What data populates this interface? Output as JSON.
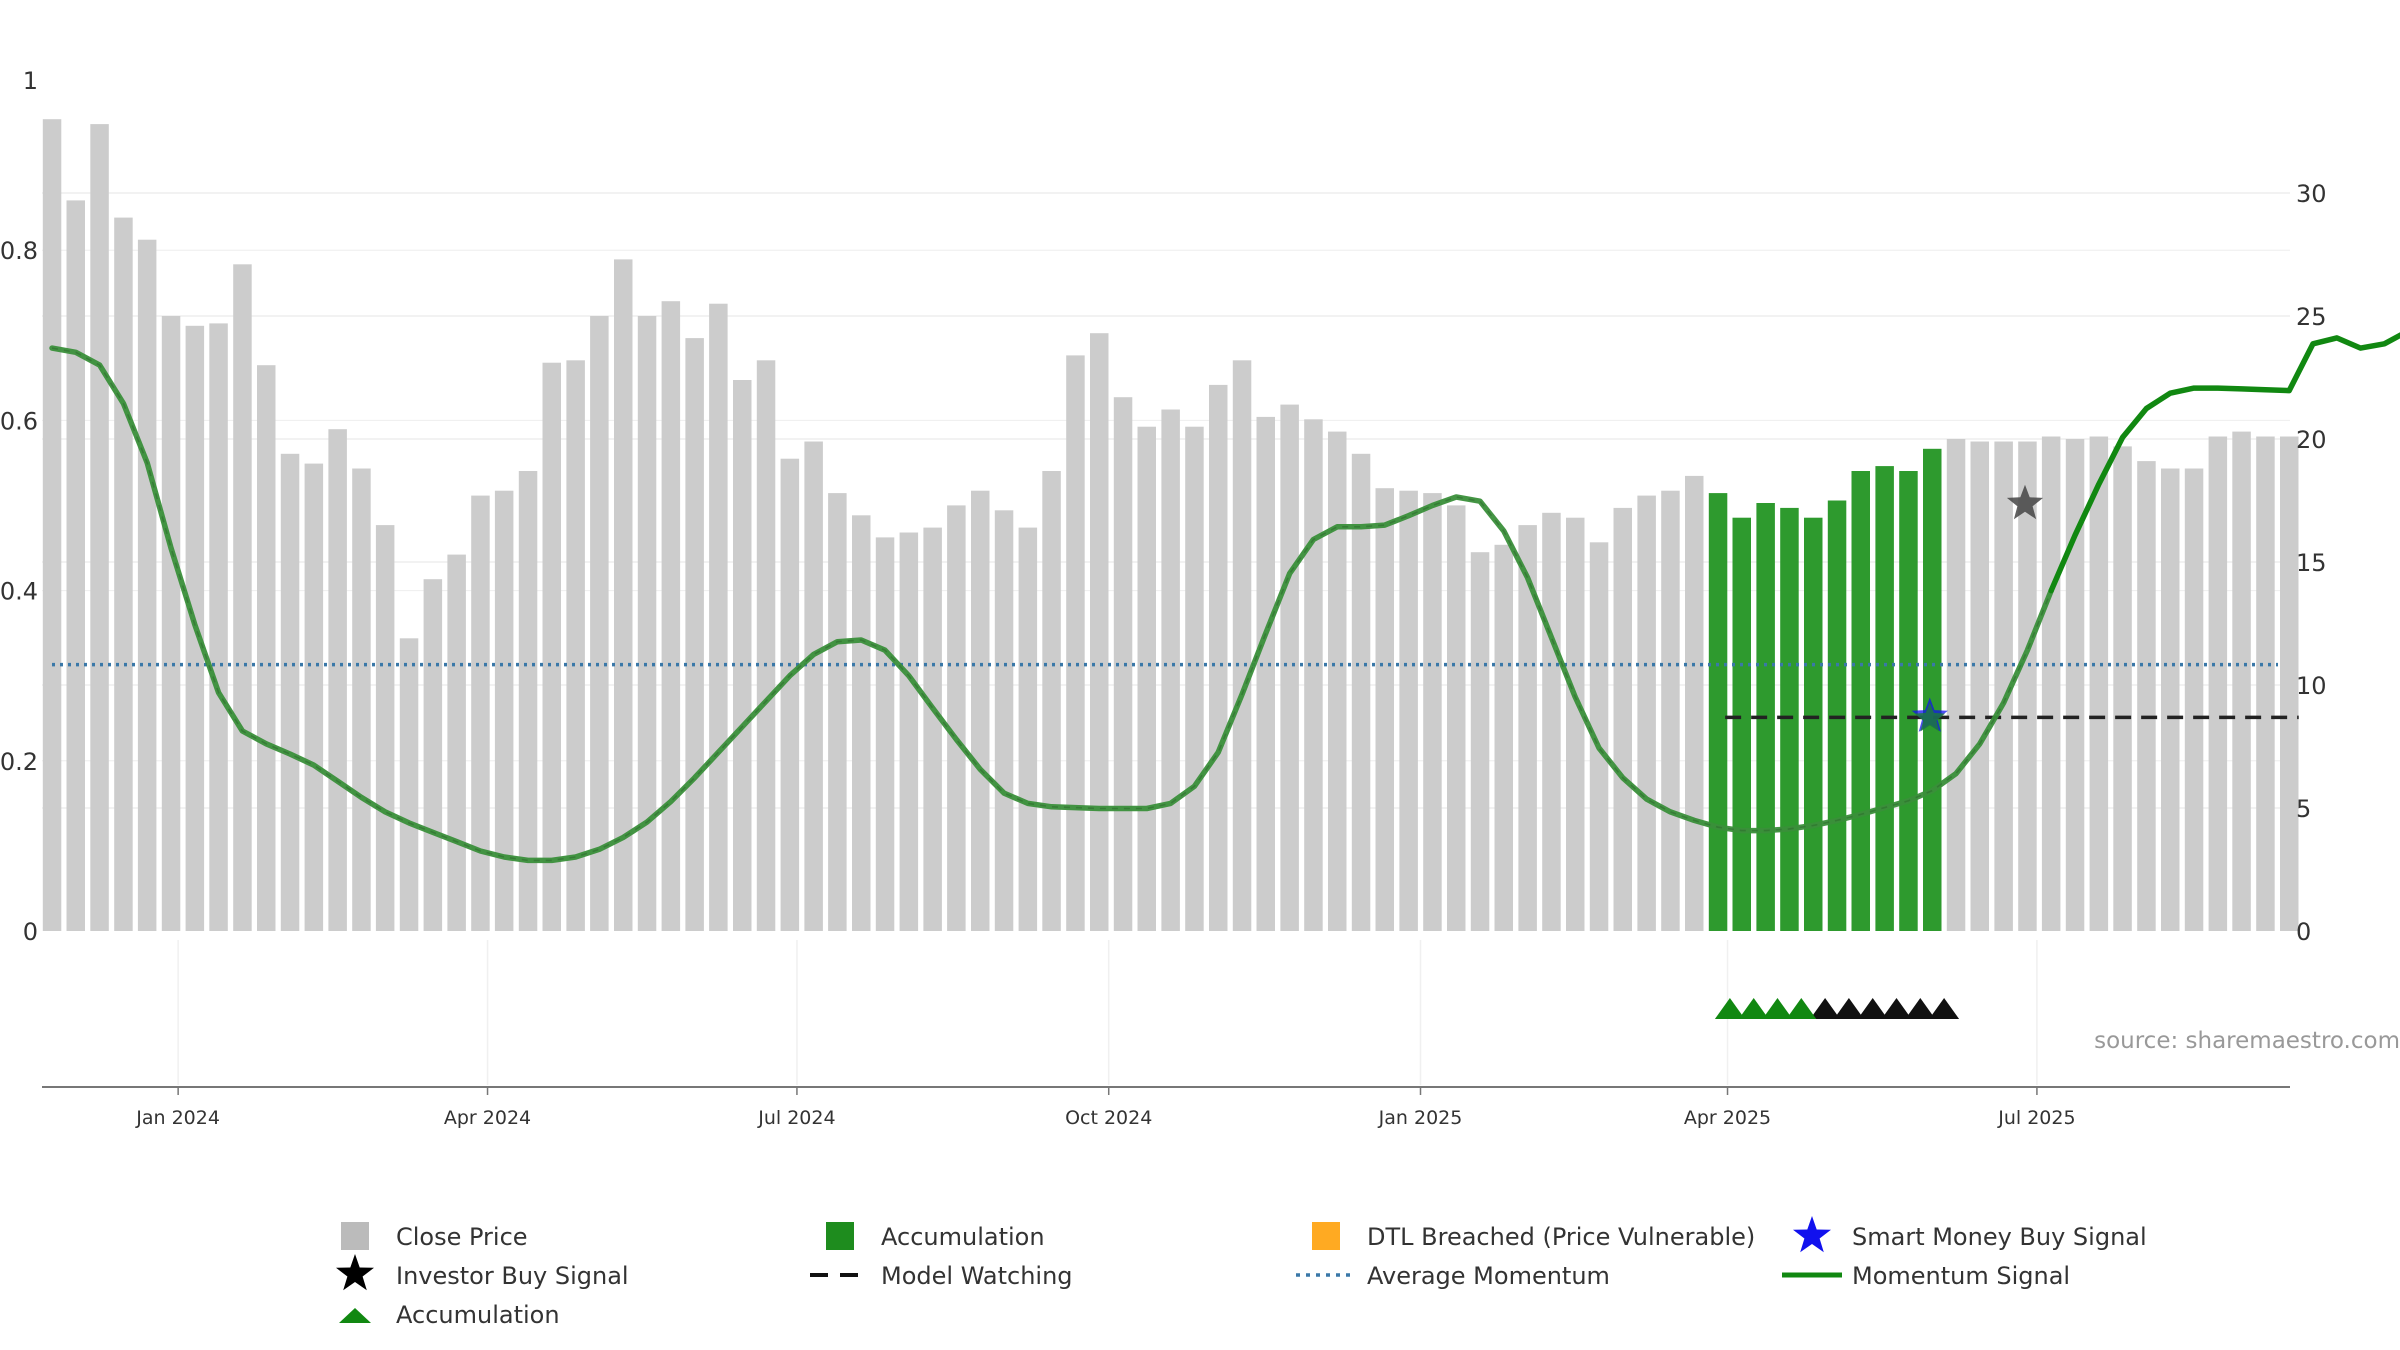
{
  "source_note": "source: sharemaestro.com",
  "legend": {
    "close_price": "Close Price",
    "accumulation_bar": "Accumulation",
    "dtl_breached": "DTL Breached (Price Vulnerable)",
    "smart_money": "Smart Money Buy Signal",
    "investor_buy": "Investor Buy Signal",
    "model_watching": "Model Watching",
    "average_momentum": "Average Momentum",
    "momentum_signal": "Momentum Signal",
    "accumulation_marker": "Accumulation"
  },
  "colors": {
    "bar_gray": "#cccccc",
    "bar_green": "#2e9a2e",
    "momentum_line": "#3a8f3a",
    "momentum_bright": "#118811",
    "average_line": "#3a78a8",
    "watching_line": "#222222",
    "dtl_orange": "#ffaa22",
    "smart_blue": "#1111ee",
    "investor_star": "#444444",
    "tri_green": "#118811",
    "tri_black": "#111111",
    "grid": "#eeeeee"
  },
  "chart_data": {
    "type": "bar",
    "x_labels": [
      "Jan 2024",
      "Apr 2024",
      "Jul 2024",
      "Oct 2024",
      "Jan 2025",
      "Apr 2025",
      "Jul 2025"
    ],
    "x_label_index": [
      5.3,
      18.3,
      31.3,
      44.4,
      57.5,
      70.4,
      83.4
    ],
    "left_axis": {
      "ticks": [
        "0",
        "0.2",
        "0.4",
        "0.6",
        "0.8",
        "1"
      ],
      "ylim": [
        0,
        1
      ]
    },
    "right_axis": {
      "ticks": [
        "0",
        "5",
        "10",
        "15",
        "20",
        "25",
        "30"
      ],
      "ylim": [
        0,
        34.6
      ]
    },
    "close_price": [
      33,
      29.7,
      32.8,
      29,
      28.1,
      25,
      24.6,
      24.7,
      27.1,
      23,
      19.4,
      19,
      20.4,
      18.8,
      16.5,
      11.9,
      14.3,
      15.3,
      17.7,
      17.9,
      18.7,
      23.1,
      23.2,
      25,
      27.3,
      25,
      25.6,
      24.1,
      25.5,
      22.4,
      23.2,
      19.2,
      19.9,
      17.8,
      16.9,
      16,
      16.2,
      16.4,
      17.3,
      17.9,
      17.1,
      16.4,
      18.7,
      23.4,
      24.3,
      21.7,
      20.5,
      21.2,
      20.5,
      22.2,
      23.2,
      20.9,
      21.4,
      20.8,
      20.3,
      19.4,
      18,
      17.9,
      17.8,
      17.3,
      15.4,
      15.7,
      16.5,
      17,
      16.8,
      15.8,
      17.2,
      17.7,
      17.9,
      18.5,
      17.8,
      16.8,
      17.4,
      17.2,
      16.8,
      17.5,
      18.7,
      18.9,
      18.7,
      19.6,
      20,
      19.9,
      19.9,
      19.9,
      20.1,
      20,
      20.1,
      19.7,
      19.1,
      18.8,
      18.8,
      20.1,
      20.3,
      20.1,
      20.1
    ],
    "accumulation_bar_index": [
      70,
      71,
      72,
      73,
      74,
      75,
      76,
      77,
      78,
      79
    ],
    "momentum_signal": [
      0.685,
      0.68,
      0.665,
      0.62,
      0.55,
      0.45,
      0.36,
      0.28,
      0.235,
      0.22,
      0.208,
      0.195,
      0.176,
      0.157,
      0.14,
      0.127,
      0.116,
      0.105,
      0.094,
      0.087,
      0.083,
      0.083,
      0.087,
      0.096,
      0.11,
      0.128,
      0.152,
      0.18,
      0.21,
      0.24,
      0.27,
      0.3,
      0.325,
      0.34,
      0.342,
      0.33,
      0.3,
      0.262,
      0.225,
      0.19,
      0.162,
      0.15,
      0.146,
      0.145,
      0.144,
      0.144,
      0.144,
      0.15,
      0.17,
      0.21,
      0.278,
      0.35,
      0.42,
      0.46,
      0.475,
      0.475,
      0.477,
      0.488,
      0.5,
      0.51,
      0.505,
      0.47,
      0.415,
      0.345,
      0.275,
      0.215,
      0.18,
      0.155,
      0.14,
      0.13,
      0.122,
      0.118,
      0.118,
      0.12,
      0.124,
      0.13,
      0.137,
      0.145,
      0.153,
      0.165,
      0.185,
      0.22,
      0.268,
      0.33,
      0.4,
      0.465,
      0.525,
      0.58,
      0.614,
      0.632,
      0.638,
      0.638,
      0.637,
      0.636,
      0.635,
      0.69,
      0.697,
      0.685,
      0.69,
      0.705
    ],
    "momentum_bright_from_index": 84,
    "average_momentum": 0.313,
    "model_watching": {
      "start_index": 70.3,
      "end_index": 94.4,
      "value": 0.251
    },
    "smart_money_signal": {
      "index": 78.9,
      "value": 0.252
    },
    "investor_buy_signal": {
      "index": 82.9,
      "value": 0.502
    },
    "markers": {
      "green_index": [
        70.5,
        71.5,
        72.5,
        73.5
      ],
      "black_index": [
        74.5,
        75.5,
        76.5,
        77.5,
        78.5,
        79.5
      ]
    }
  }
}
